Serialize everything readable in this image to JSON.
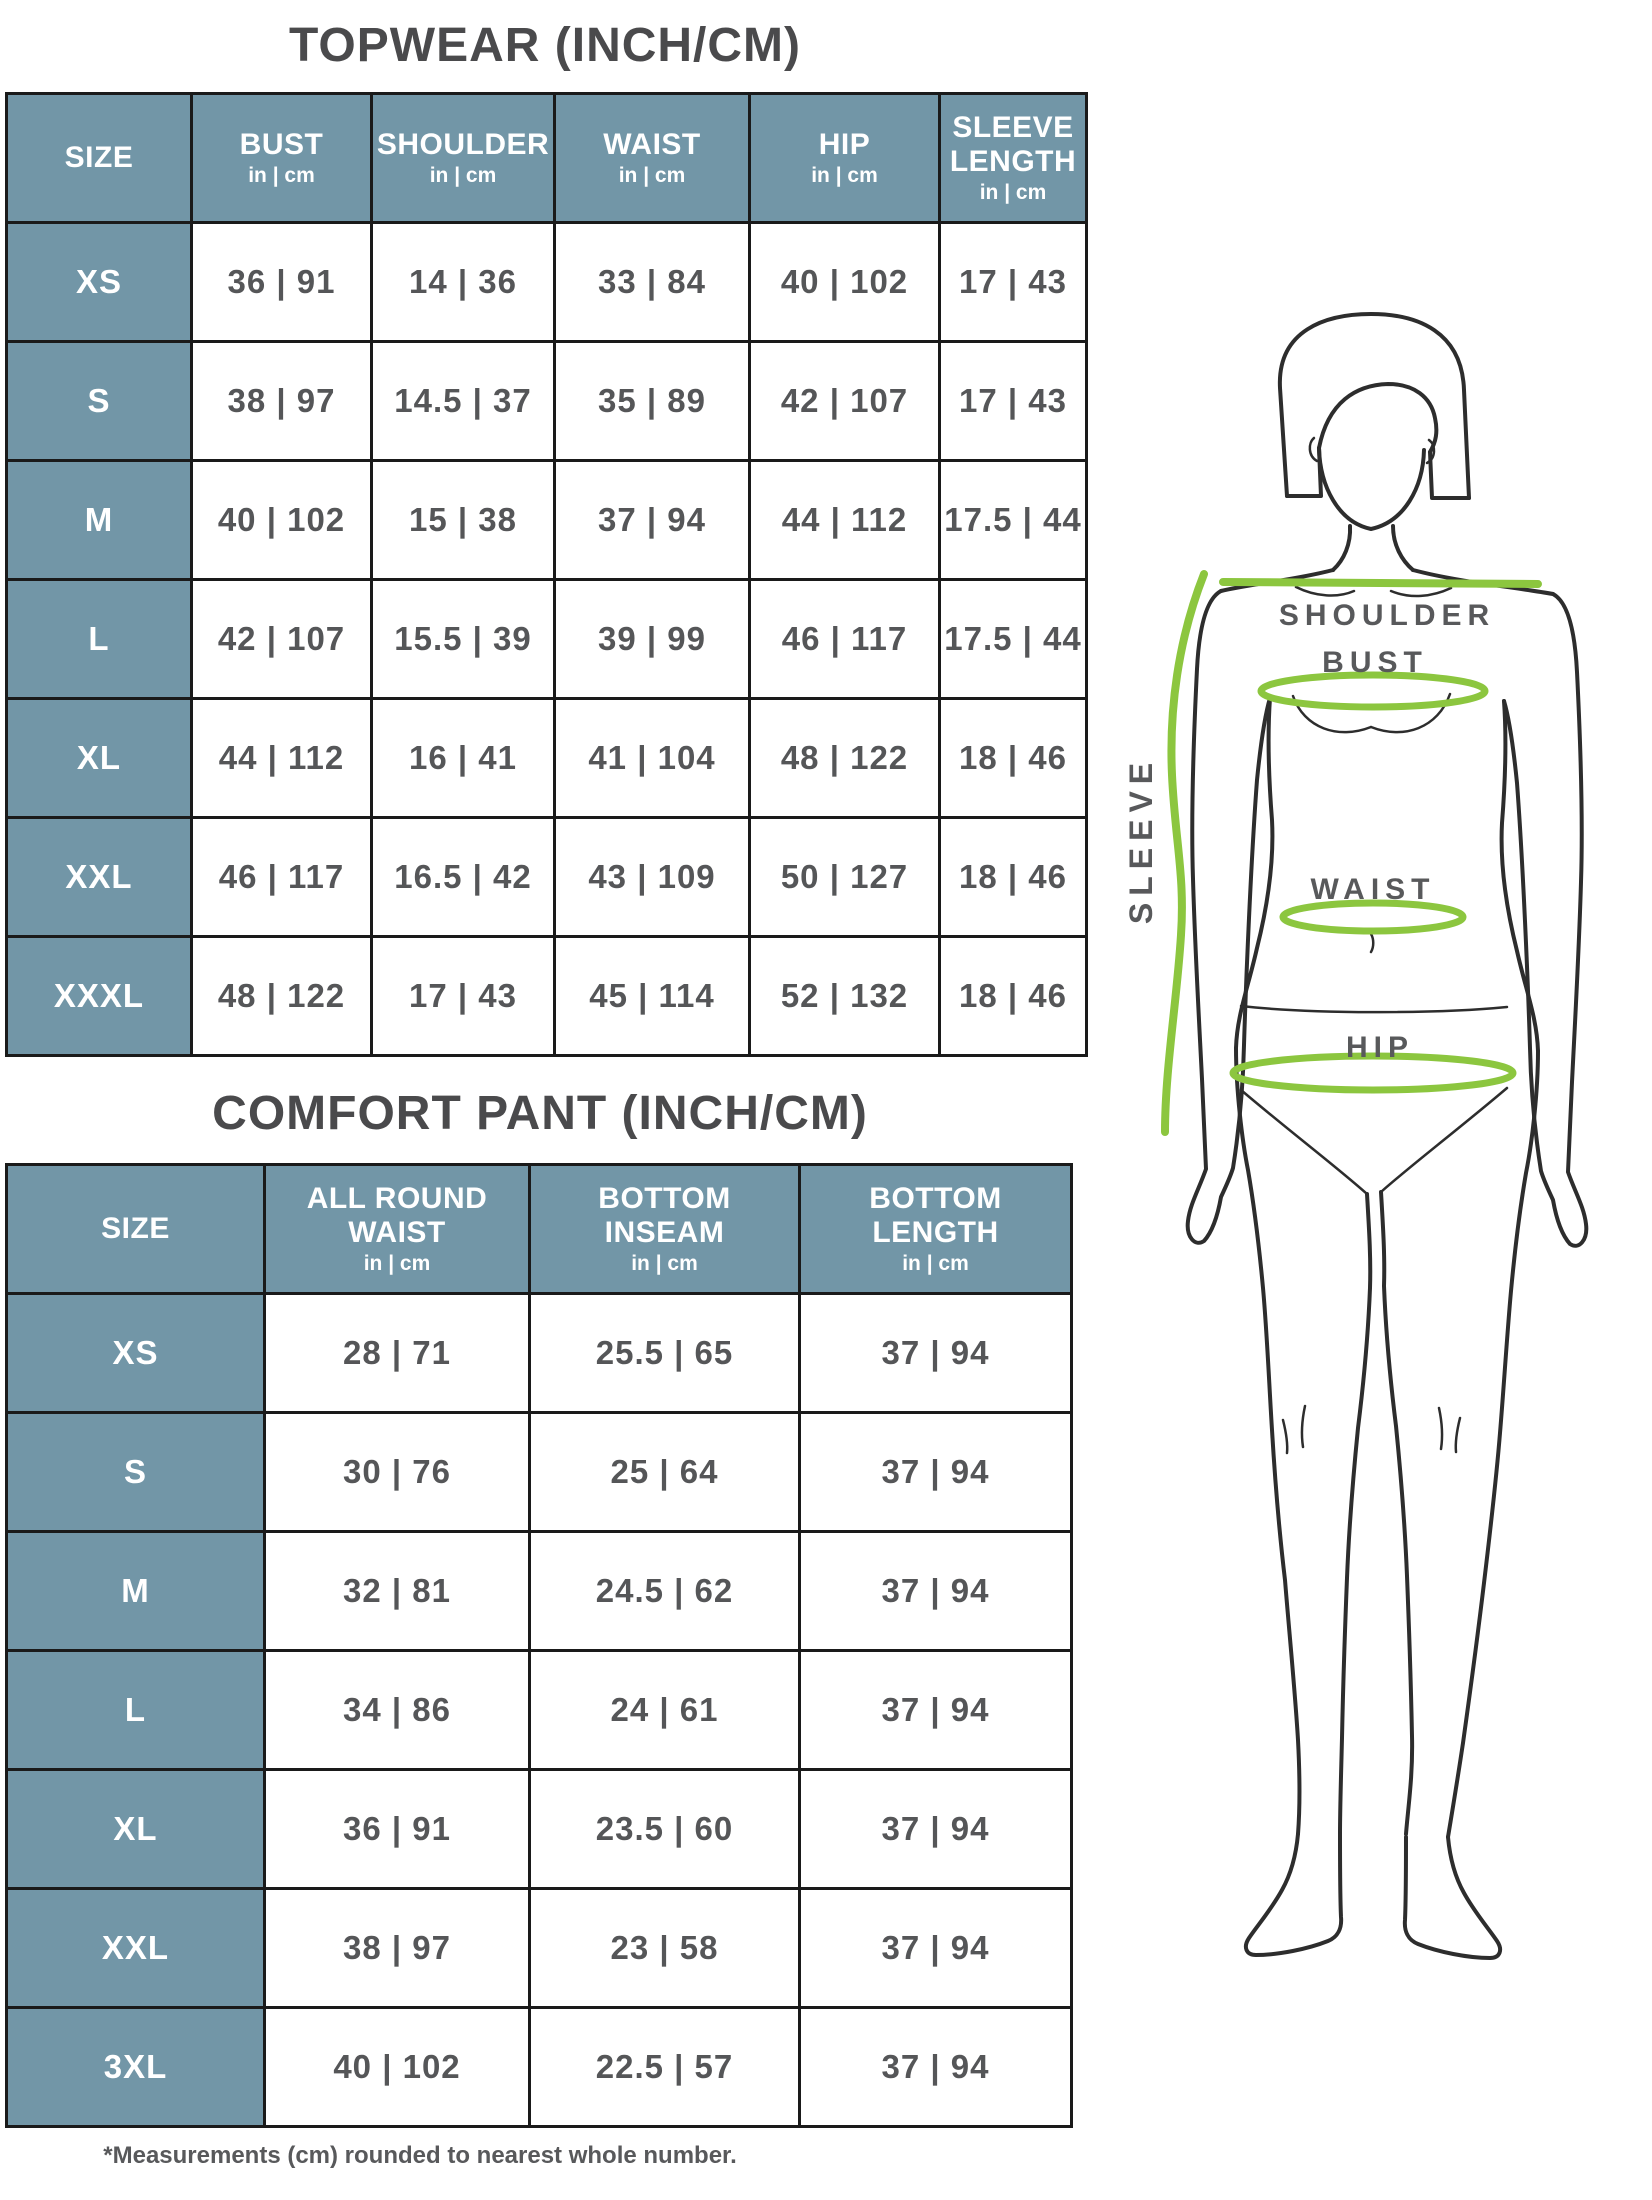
{
  "topwear": {
    "title": "TOPWEAR (INCH/CM)",
    "unit_label": "in | cm",
    "columns": [
      "SIZE",
      "BUST",
      "SHOULDER",
      "WAIST",
      "HIP",
      "SLEEVE\nLENGTH"
    ],
    "rows": [
      {
        "size": "XS",
        "values": [
          "36 | 91",
          "14 | 36",
          "33 | 84",
          "40 | 102",
          "17 | 43"
        ]
      },
      {
        "size": "S",
        "values": [
          "38 | 97",
          "14.5 | 37",
          "35 | 89",
          "42 | 107",
          "17 | 43"
        ]
      },
      {
        "size": "M",
        "values": [
          "40 | 102",
          "15 | 38",
          "37 | 94",
          "44 | 112",
          "17.5 | 44"
        ]
      },
      {
        "size": "L",
        "values": [
          "42 | 107",
          "15.5 | 39",
          "39 | 99",
          "46 | 117",
          "17.5 | 44"
        ]
      },
      {
        "size": "XL",
        "values": [
          "44 | 112",
          "16 | 41",
          "41 | 104",
          "48 | 122",
          "18 | 46"
        ]
      },
      {
        "size": "XXL",
        "values": [
          "46 | 117",
          "16.5 | 42",
          "43 | 109",
          "50 | 127",
          "18 | 46"
        ]
      },
      {
        "size": "XXXL",
        "values": [
          "48 | 122",
          "17 | 43",
          "45 | 114",
          "52 | 132",
          "18 | 46"
        ]
      }
    ]
  },
  "comfort_pant": {
    "title": "COMFORT PANT (INCH/CM)",
    "unit_label": "in | cm",
    "columns": [
      "SIZE",
      "ALL ROUND\nWAIST",
      "BOTTOM\nINSEAM",
      "BOTTOM\nLENGTH"
    ],
    "rows": [
      {
        "size": "XS",
        "values": [
          "28 | 71",
          "25.5 | 65",
          "37 | 94"
        ]
      },
      {
        "size": "S",
        "values": [
          "30 | 76",
          "25 | 64",
          "37 | 94"
        ]
      },
      {
        "size": "M",
        "values": [
          "32 | 81",
          "24.5 | 62",
          "37 | 94"
        ]
      },
      {
        "size": "L",
        "values": [
          "34 | 86",
          "24 | 61",
          "37 | 94"
        ]
      },
      {
        "size": "XL",
        "values": [
          "36 | 91",
          "23.5 | 60",
          "37 | 94"
        ]
      },
      {
        "size": "XXL",
        "values": [
          "38 | 97",
          "23 | 58",
          "37 | 94"
        ]
      },
      {
        "size": "3XL",
        "values": [
          "40 | 102",
          "22.5 | 57",
          "37 | 94"
        ]
      }
    ]
  },
  "footnote": "*Measurements (cm) rounded to nearest whole number.",
  "figure": {
    "labels": {
      "shoulder": "SHOULDER",
      "bust": "BUST",
      "waist": "WAIST",
      "hip": "HIP",
      "sleeve": "SLEEVE"
    }
  },
  "colors": {
    "header_blue": "#7296a7",
    "border": "#1a1a1a",
    "text_dark": "#555658",
    "title_gray": "#4a4a4c",
    "measure_green": "#8cc63f",
    "outline": "#2d2d2d",
    "label_gray": "#58595b"
  }
}
